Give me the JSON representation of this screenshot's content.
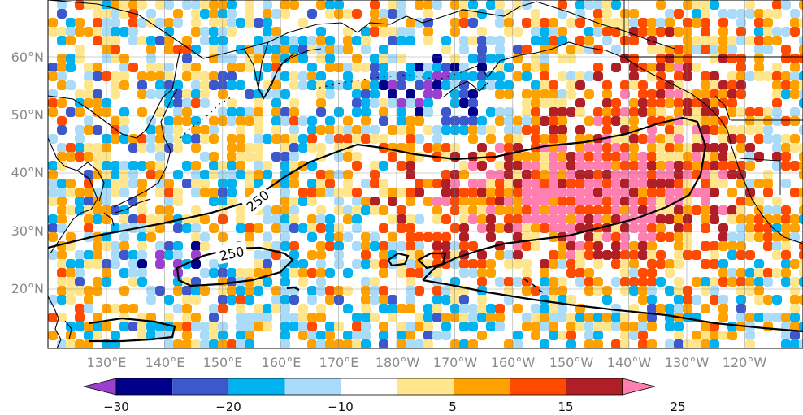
{
  "latitude_labels": [
    "60°N",
    "50°N",
    "40°N",
    "30°N",
    "20°N"
  ],
  "longitude_labels": [
    "130°E",
    "140°E",
    "150°E",
    "160°E",
    "170°E",
    "180°W",
    "170°W",
    "160°W",
    "150°W",
    "140°W",
    "130°W",
    "120°W"
  ],
  "contour": {
    "label_upper": "250",
    "label_lower": "250",
    "color": "#000000"
  },
  "colorbar": {
    "tick_labels": [
      "−30",
      "−20",
      "−10",
      "5",
      "15",
      "25"
    ],
    "colors": [
      "#9a3fd0",
      "#00008a",
      "#3c58cc",
      "#00b2f0",
      "#aadcfa",
      "#ffffff",
      "#ffe68c",
      "#ffa200",
      "#ff4a00",
      "#b01e26",
      "#ff80b0"
    ]
  },
  "colors": {
    "coast": "#000000",
    "grid": "#7a7a7a",
    "axis_text": "#8a8a8a"
  }
}
